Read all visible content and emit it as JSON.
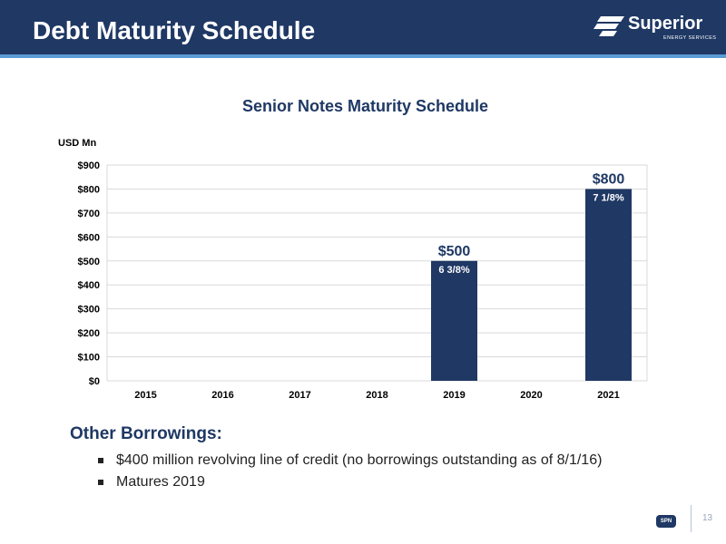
{
  "header": {
    "title": "Debt Maturity Schedule",
    "logo_text": "Superior",
    "logo_subtext": "ENERGY SERVICES"
  },
  "chart_data": {
    "type": "bar",
    "title": "Senior Notes Maturity Schedule",
    "ylabel": "USD Mn",
    "xlabel": "",
    "categories": [
      "2015",
      "2016",
      "2017",
      "2018",
      "2019",
      "2020",
      "2021"
    ],
    "values": [
      0,
      0,
      0,
      0,
      500,
      0,
      800
    ],
    "value_labels": [
      "",
      "",
      "",
      "",
      "$500",
      "",
      "$800"
    ],
    "rate_labels": [
      "",
      "",
      "",
      "",
      "6 3/8%",
      "",
      "7 1/8%"
    ],
    "yticks": [
      "$0",
      "$100",
      "$200",
      "$300",
      "$400",
      "$500",
      "$600",
      "$700",
      "$800",
      "$900"
    ],
    "ylim": [
      0,
      900
    ],
    "grid": true,
    "colors": {
      "bar": "#1f3864",
      "grid": "#d9d9d9",
      "title": "#1f3864"
    }
  },
  "other_borrowings": {
    "heading": "Other Borrowings:",
    "bullets": [
      "$400 million revolving line of credit (no borrowings outstanding as of 8/1/16)",
      "Matures 2019"
    ]
  },
  "footer": {
    "badge_text": "SPN",
    "page_number": "13"
  }
}
